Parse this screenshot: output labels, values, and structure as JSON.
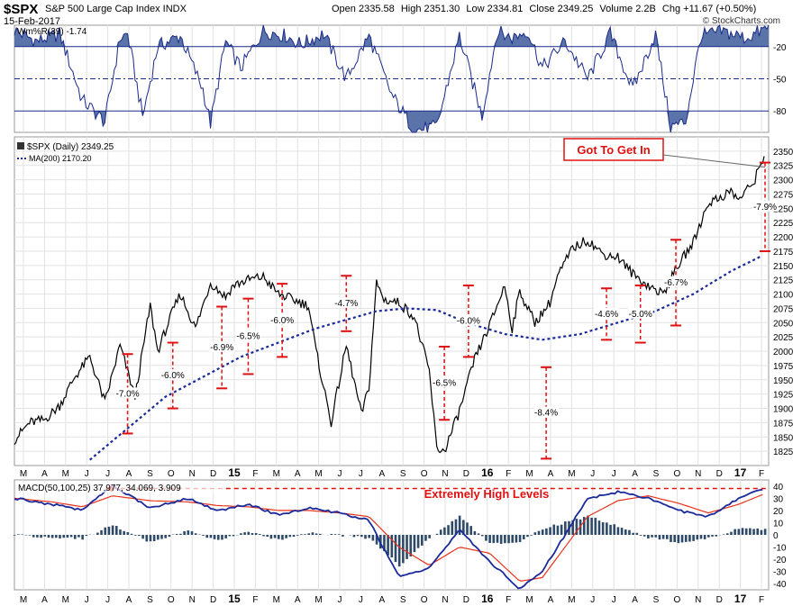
{
  "header": {
    "symbol": "$SPX",
    "name": "S&P 500 Large Cap Index INDX",
    "date": "15-Feb-2017",
    "open_label": "Open",
    "open": "2335.58",
    "high_label": "High",
    "high": "2351.30",
    "low_label": "Low",
    "low": "2334.81",
    "close_label": "Close",
    "close": "2349.25",
    "volume_label": "Volume",
    "volume": "2.2B",
    "chg_label": "Chg",
    "chg": "+11.67 (+0.50%)",
    "watermark": "© StockCharts.com"
  },
  "colors": {
    "price": "#000000",
    "ma200": "#1a2a9a",
    "willr": "#1a2a8a",
    "willr_fill": "#5a73a8",
    "macd": "#1a2a9a",
    "signal": "#e8321a",
    "histogram": "#2e4a68",
    "annotation": "#e01010",
    "grid": "#e2e2e2",
    "panel_border": "#999999"
  },
  "chart_data": [
    {
      "panel": "willr",
      "type": "line",
      "legend": "Wm%R(39) -1.74",
      "ylim": [
        -100,
        0
      ],
      "yticks": [
        -20,
        -50,
        -80
      ],
      "reference_lines": [
        -20,
        -50,
        -80
      ],
      "x": [
        0,
        3,
        6,
        9,
        12,
        14,
        15,
        17,
        19,
        22,
        25,
        26,
        28,
        30,
        33,
        36,
        38,
        41,
        44,
        47,
        50,
        53,
        56,
        59,
        62,
        64,
        66,
        68,
        70,
        73,
        76,
        79,
        82,
        85,
        87,
        89,
        91,
        94,
        97,
        100
      ],
      "values": [
        -5,
        -15,
        -8,
        -70,
        -90,
        -12,
        -8,
        -85,
        -20,
        -10,
        -60,
        -92,
        -15,
        -40,
        -5,
        -10,
        -18,
        -8,
        -50,
        -10,
        -65,
        -98,
        -95,
        -10,
        -85,
        -6,
        -12,
        -5,
        -40,
        -15,
        -50,
        -8,
        -60,
        -8,
        -95,
        -90,
        -10,
        -6,
        -12,
        -2
      ]
    },
    {
      "panel": "price",
      "type": "line",
      "legend": [
        "$SPX (Daily) 2349.25",
        "MA(200) 2170.20"
      ],
      "ylim": [
        1800,
        2375
      ],
      "yticks": [
        1825,
        1850,
        1875,
        1900,
        1925,
        1950,
        1975,
        2000,
        2025,
        2050,
        2075,
        2100,
        2125,
        2150,
        2175,
        2200,
        2225,
        2250,
        2275,
        2300,
        2325,
        2350
      ],
      "series": [
        {
          "name": "$SPX (Daily) 2349.25",
          "x": [
            0,
            2,
            4,
            6,
            8,
            10,
            12,
            14,
            16,
            18,
            19,
            21,
            22,
            24,
            26,
            28,
            29,
            31,
            33,
            35,
            37,
            39,
            40,
            42,
            44,
            46,
            47,
            48,
            49,
            51,
            53,
            55,
            56,
            57,
            59,
            61,
            63,
            65,
            66,
            67,
            69,
            71,
            72,
            74,
            76,
            78,
            80,
            82,
            84,
            86,
            88,
            90,
            92,
            93,
            95,
            96,
            98,
            99.6
          ],
          "values": [
            1845,
            1875,
            1880,
            1905,
            1955,
            1990,
            1910,
            2010,
            1920,
            2080,
            2000,
            2070,
            2100,
            2040,
            2120,
            2095,
            2115,
            2125,
            2130,
            2100,
            2090,
            2080,
            2000,
            1875,
            2010,
            1890,
            1935,
            2120,
            2090,
            2085,
            2060,
            1965,
            1830,
            1825,
            1895,
            1985,
            2045,
            2115,
            2040,
            2105,
            2050,
            2085,
            2130,
            2180,
            2195,
            2170,
            2165,
            2135,
            2115,
            2100,
            2150,
            2190,
            2260,
            2265,
            2280,
            2265,
            2295,
            2350
          ]
        },
        {
          "name": "MA(200) 2170.20",
          "x": [
            10,
            20,
            30,
            40,
            48,
            52,
            56,
            60,
            65,
            70,
            75,
            80,
            85,
            90,
            95,
            99.6
          ],
          "values": [
            1810,
            1920,
            1990,
            2040,
            2070,
            2075,
            2072,
            2050,
            2030,
            2020,
            2030,
            2050,
            2070,
            2100,
            2140,
            2170
          ]
        }
      ],
      "annotations": [
        {
          "label": "-7.0%",
          "x": 15,
          "from": 1995,
          "to": 1856
        },
        {
          "label": "-6.0%",
          "x": 21,
          "from": 2015,
          "to": 1900
        },
        {
          "label": "-6.9%",
          "x": 27.5,
          "from": 2078,
          "to": 1935
        },
        {
          "label": "-6.5%",
          "x": 31,
          "from": 2092,
          "to": 1960
        },
        {
          "label": "-6.0%",
          "x": 35.5,
          "from": 2118,
          "to": 1990
        },
        {
          "label": "-4.7%",
          "x": 44,
          "from": 2132,
          "to": 2035
        },
        {
          "label": "-6.5%",
          "x": 57,
          "from": 2008,
          "to": 1880
        },
        {
          "label": "-6.0%",
          "x": 60.2,
          "from": 2115,
          "to": 1990
        },
        {
          "label": "-8.4%",
          "x": 70.5,
          "from": 1972,
          "to": 1812
        },
        {
          "label": "-4.6%",
          "x": 78.5,
          "from": 2110,
          "to": 2020
        },
        {
          "label": "-5.0%",
          "x": 83,
          "from": 2115,
          "to": 2015
        },
        {
          "label": "-6.7%",
          "x": 87.7,
          "from": 2195,
          "to": 2045
        },
        {
          "label": "-7.9%",
          "x": 104.5,
          "from": 2330,
          "to": 2175
        }
      ],
      "callout": "Got To Get In"
    },
    {
      "panel": "macd",
      "type": "line",
      "legend": "MACD(50,100,25) 37.977, 34.069, 3.909",
      "ylim": [
        -45,
        45
      ],
      "yticks": [
        40,
        30,
        20,
        10,
        0,
        -10,
        -20,
        -30,
        -40
      ],
      "note": "Extremely High Levels",
      "series": [
        {
          "name": "MACD(50,100,25)",
          "x": [
            0,
            5,
            9,
            13,
            18,
            23,
            27,
            31,
            35,
            39,
            43,
            47,
            51,
            55,
            59,
            63,
            67,
            70,
            73,
            76,
            80,
            84,
            88,
            92,
            96,
            99.6
          ],
          "values": [
            30,
            25,
            20,
            40,
            22,
            30,
            20,
            25,
            16,
            22,
            18,
            12,
            -35,
            -28,
            5,
            -22,
            -44,
            -30,
            0,
            30,
            35,
            30,
            20,
            15,
            30,
            38
          ]
        },
        {
          "name": "Signal",
          "x": [
            0,
            5,
            9,
            13,
            18,
            23,
            27,
            31,
            35,
            39,
            43,
            47,
            51,
            55,
            59,
            63,
            67,
            70,
            73,
            76,
            80,
            84,
            88,
            92,
            96,
            99.6
          ],
          "values": [
            30,
            27,
            23,
            32,
            28,
            27,
            24,
            23,
            20,
            20,
            18,
            15,
            -10,
            -25,
            -10,
            -15,
            -38,
            -35,
            -10,
            15,
            28,
            32,
            26,
            18,
            25,
            34
          ]
        },
        {
          "name": "Histogram",
          "x": [
            0,
            5,
            9,
            13,
            18,
            23,
            27,
            31,
            35,
            39,
            43,
            47,
            51,
            55,
            59,
            63,
            67,
            70,
            73,
            76,
            80,
            84,
            88,
            92,
            96,
            99.6
          ],
          "values": [
            0,
            -2,
            -3,
            8,
            -6,
            3,
            -4,
            2,
            -4,
            2,
            0,
            -3,
            -25,
            -3,
            15,
            -7,
            -6,
            5,
            10,
            15,
            7,
            -2,
            -6,
            -3,
            5,
            4
          ]
        }
      ]
    }
  ],
  "x_axis": {
    "top_labels": [
      "M",
      "A",
      "M",
      "J",
      "J",
      "A",
      "S",
      "O",
      "N",
      "D",
      "15",
      "F",
      "M",
      "A",
      "M",
      "J",
      "J",
      "A",
      "S",
      "O",
      "N",
      "D",
      "16",
      "F",
      "M",
      "A",
      "M",
      "J",
      "J",
      "A",
      "S",
      "O",
      "N",
      "D",
      "17",
      "F"
    ],
    "bottom_labels": [
      "M",
      "A",
      "M",
      "J",
      "J",
      "A",
      "S",
      "O",
      "N",
      "D",
      "15",
      "F",
      "M",
      "A",
      "M",
      "J",
      "J",
      "A",
      "S",
      "O",
      "N",
      "D",
      "16",
      "F",
      "M",
      "A",
      "M",
      "J",
      "J",
      "A",
      "S",
      "O",
      "N",
      "D",
      "17",
      "F"
    ],
    "bold": [
      "15",
      "16",
      "17"
    ]
  }
}
